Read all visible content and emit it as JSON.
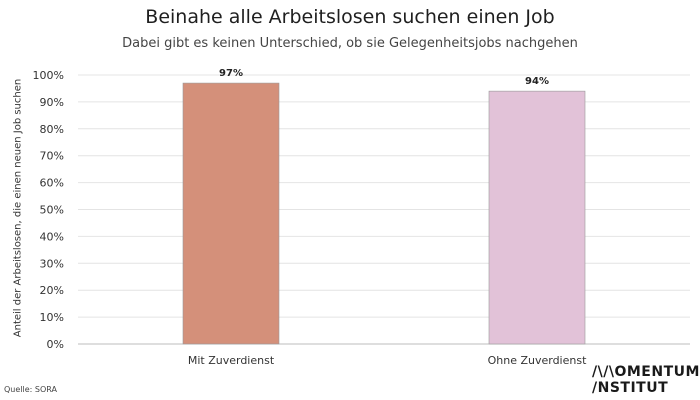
{
  "chart_data": {
    "type": "bar",
    "title": "Beinahe alle Arbeitslosen suchen einen Job",
    "subtitle": "Dabei gibt es keinen Unterschied, ob sie Gelegenheitsjobs nachgehen",
    "ylabel": "Anteil der Arbeitslosen, die einen neuen Job suchen",
    "xlabel": "",
    "categories": [
      "Mit Zuverdienst",
      "Ohne Zuverdienst"
    ],
    "values": [
      97,
      94
    ],
    "data_labels": [
      "97%",
      "94%"
    ],
    "colors": [
      "#d4907a",
      "#e2c2d8"
    ],
    "ylim": [
      0,
      100
    ],
    "yticks": [
      0,
      10,
      20,
      30,
      40,
      50,
      60,
      70,
      80,
      90,
      100
    ],
    "ytick_labels": [
      "0%",
      "10%",
      "20%",
      "30%",
      "40%",
      "50%",
      "60%",
      "70%",
      "80%",
      "90%",
      "100%"
    ],
    "grid": true
  },
  "source": "Quelle: SORA",
  "logo": {
    "line1": "/\\/\\OMENTUM",
    "line2": "/NSTITUT"
  }
}
